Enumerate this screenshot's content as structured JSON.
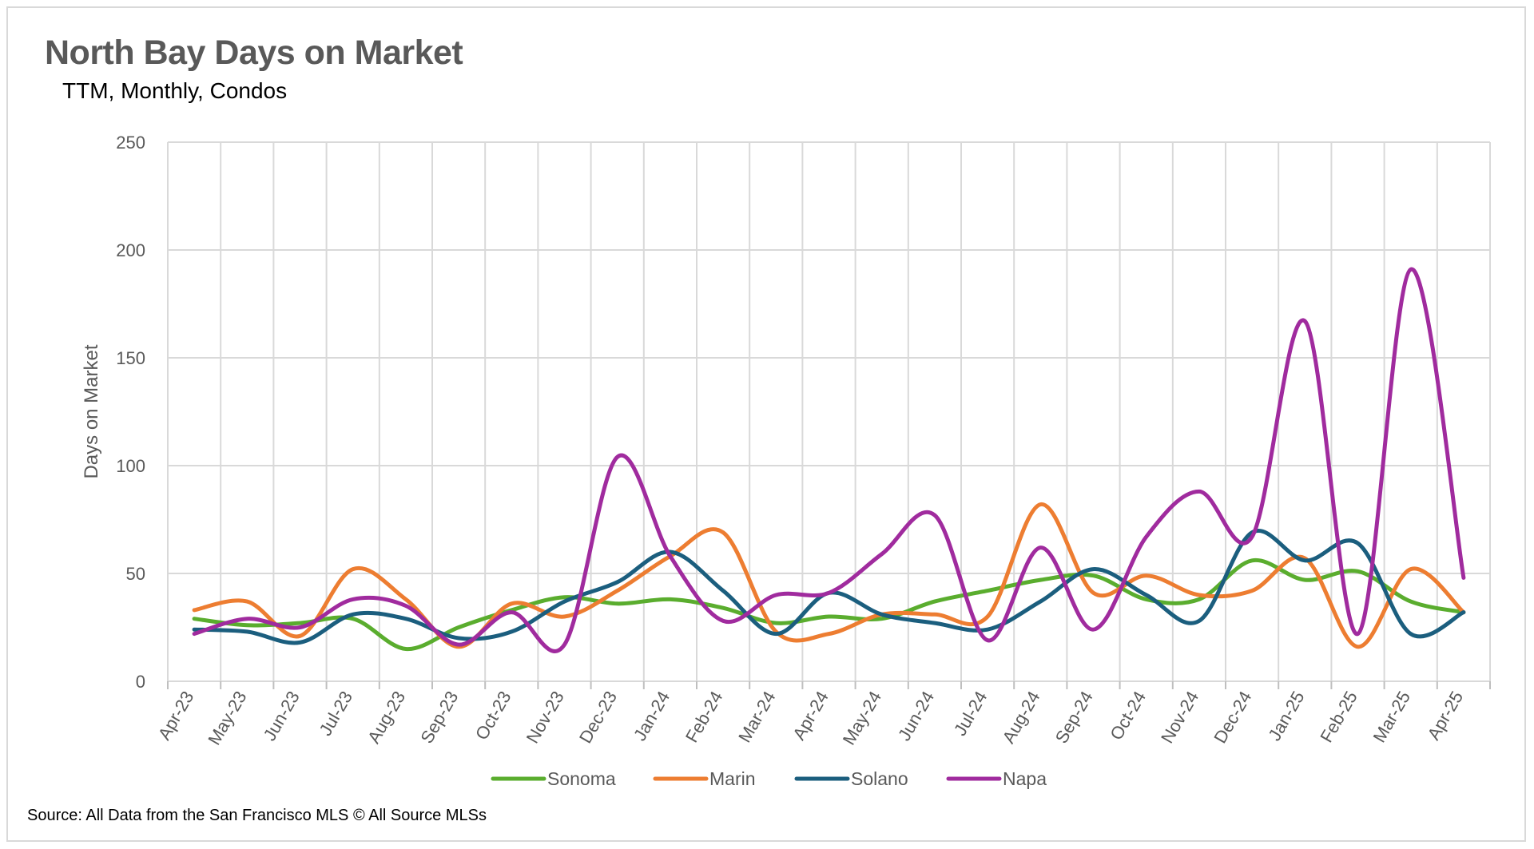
{
  "chart_data": {
    "type": "line",
    "title": "North Bay Days on Market",
    "subtitle": "TTM, Monthly, Condos",
    "ylabel": "Days on Market",
    "xlabel": "",
    "ylim": [
      0,
      250
    ],
    "yticks": [
      0,
      50,
      100,
      150,
      200,
      250
    ],
    "grid": true,
    "legend_position": "bottom",
    "categories": [
      "Apr-23",
      "May-23",
      "Jun-23",
      "Jul-23",
      "Aug-23",
      "Sep-23",
      "Oct-23",
      "Nov-23",
      "Dec-23",
      "Jan-24",
      "Feb-24",
      "Mar-24",
      "Apr-24",
      "May-24",
      "Jun-24",
      "Jul-24",
      "Aug-24",
      "Sep-24",
      "Oct-24",
      "Nov-24",
      "Dec-24",
      "Jan-25",
      "Feb-25",
      "Mar-25",
      "Apr-25"
    ],
    "series": [
      {
        "name": "Sonoma",
        "color": "#5aad2e",
        "values": [
          29,
          26,
          27,
          29,
          15,
          25,
          33,
          39,
          36,
          38,
          34,
          27,
          30,
          29,
          37,
          42,
          47,
          49,
          38,
          38,
          56,
          47,
          51,
          37,
          32
        ]
      },
      {
        "name": "Marin",
        "color": "#ed7d31",
        "values": [
          33,
          37,
          21,
          52,
          38,
          16,
          36,
          30,
          42,
          58,
          69,
          23,
          22,
          31,
          31,
          30,
          82,
          41,
          49,
          40,
          42,
          57,
          16,
          52,
          32
        ]
      },
      {
        "name": "Solano",
        "color": "#1b5e7e",
        "values": [
          24,
          23,
          18,
          31,
          29,
          20,
          23,
          37,
          46,
          60,
          42,
          22,
          41,
          31,
          27,
          24,
          37,
          52,
          40,
          28,
          69,
          56,
          64,
          22,
          32
        ]
      },
      {
        "name": "Napa",
        "color": "#a02b9e",
        "values": [
          22,
          29,
          25,
          38,
          35,
          17,
          32,
          17,
          104,
          58,
          28,
          40,
          41,
          59,
          77,
          19,
          62,
          24,
          67,
          88,
          67,
          167,
          22,
          191,
          48
        ]
      }
    ]
  },
  "source_note": "Source: All Data from the San Francisco MLS © All Source MLSs"
}
